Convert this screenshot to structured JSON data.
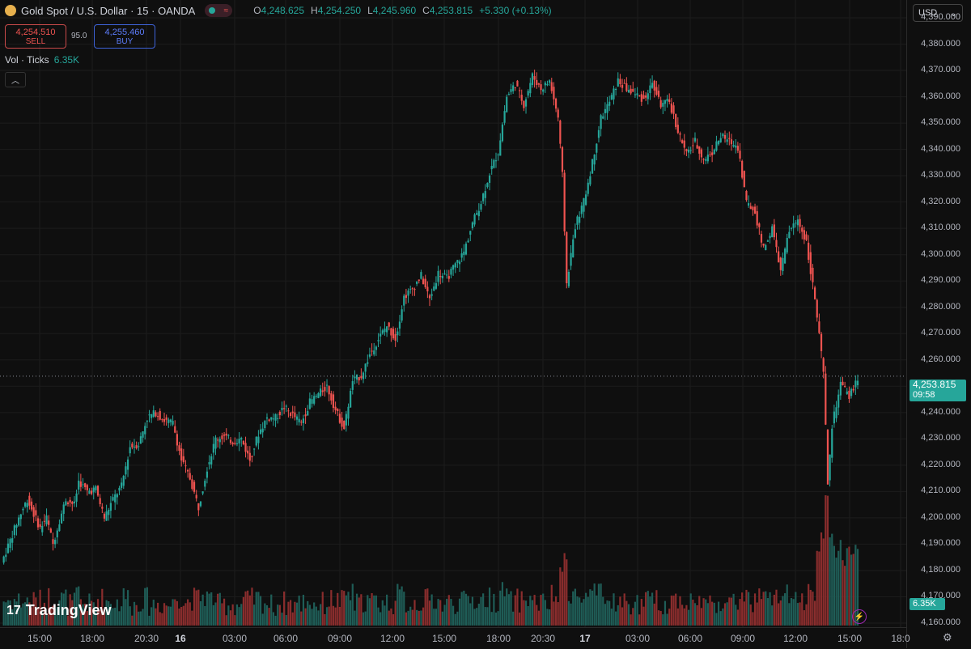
{
  "header": {
    "symbol_title": "Gold Spot / U.S. Dollar · 15 · OANDA",
    "pill_icon": "≈",
    "ohlc": {
      "o_label": "O",
      "o_value": "4,248.625",
      "h_label": "H",
      "h_value": "4,254.250",
      "l_label": "L",
      "l_value": "4,245.960",
      "c_label": "C",
      "c_value": "4,253.815",
      "change": "+5.330 (+0.13%)"
    }
  },
  "trade": {
    "sell_price": "4,254.510",
    "sell_label": "SELL",
    "spread": "95.0",
    "buy_price": "4,255.460",
    "buy_label": "BUY"
  },
  "volume_legend": {
    "label": "Vol · Ticks",
    "value": "6.35K"
  },
  "currency": {
    "value": "USD",
    "icon": "chevron-down-icon"
  },
  "last_price": {
    "value": "4,253.815",
    "countdown": "09:58"
  },
  "volume_last": "6.35K",
  "brand": "TradingView",
  "colors": {
    "up": "#26a69a",
    "down": "#ef5350",
    "vol_up": "#1f5d57",
    "vol_down": "#8a2d2d",
    "grid": "#1c1c1c"
  },
  "chart_data": {
    "type": "candlestick",
    "interval": "15",
    "y_ticks": [
      "4,390.000",
      "4,380.000",
      "4,370.000",
      "4,360.000",
      "4,350.000",
      "4,340.000",
      "4,330.000",
      "4,320.000",
      "4,310.000",
      "4,300.000",
      "4,290.000",
      "4,280.000",
      "4,270.000",
      "4,260.000",
      "4,250.000",
      "4,240.000",
      "4,230.000",
      "4,220.000",
      "4,210.000",
      "4,200.000",
      "4,190.000",
      "4,180.000",
      "4,170.000",
      "4,160.000"
    ],
    "ylim": [
      4160,
      4390
    ],
    "x_ticks": [
      "15:00",
      "18:00",
      "20:30",
      "16",
      "03:00",
      "06:00",
      "09:00",
      "12:00",
      "15:00",
      "18:00",
      "20:30",
      "17",
      "03:00",
      "06:00",
      "09:00",
      "12:00",
      "15:00",
      "18:0"
    ],
    "day_ticks": [
      "16",
      "17"
    ],
    "close_path": [
      [
        0,
        4183
      ],
      [
        8,
        4200
      ],
      [
        12,
        4207
      ],
      [
        18,
        4196
      ],
      [
        21,
        4200
      ],
      [
        24,
        4190
      ],
      [
        27,
        4199
      ],
      [
        30,
        4207
      ],
      [
        34,
        4205
      ],
      [
        36,
        4214
      ],
      [
        40,
        4210
      ],
      [
        44,
        4211
      ],
      [
        48,
        4200
      ],
      [
        52,
        4207
      ],
      [
        56,
        4212
      ],
      [
        60,
        4227
      ],
      [
        64,
        4228
      ],
      [
        68,
        4238
      ],
      [
        72,
        4240
      ],
      [
        76,
        4237
      ],
      [
        80,
        4236
      ],
      [
        84,
        4222
      ],
      [
        88,
        4215
      ],
      [
        92,
        4204
      ],
      [
        96,
        4219
      ],
      [
        100,
        4230
      ],
      [
        104,
        4231
      ],
      [
        108,
        4229
      ],
      [
        112,
        4230
      ],
      [
        116,
        4222
      ],
      [
        120,
        4232
      ],
      [
        124,
        4238
      ],
      [
        128,
        4238
      ],
      [
        132,
        4242
      ],
      [
        136,
        4239
      ],
      [
        140,
        4236
      ],
      [
        144,
        4244
      ],
      [
        148,
        4247
      ],
      [
        152,
        4250
      ],
      [
        156,
        4241
      ],
      [
        160,
        4234
      ],
      [
        164,
        4252
      ],
      [
        168,
        4254
      ],
      [
        172,
        4262
      ],
      [
        176,
        4268
      ],
      [
        180,
        4273
      ],
      [
        184,
        4268
      ],
      [
        188,
        4284
      ],
      [
        192,
        4287
      ],
      [
        196,
        4292
      ],
      [
        200,
        4283
      ],
      [
        204,
        4293
      ],
      [
        208,
        4291
      ],
      [
        212,
        4296
      ],
      [
        216,
        4301
      ],
      [
        220,
        4312
      ],
      [
        224,
        4320
      ],
      [
        228,
        4331
      ],
      [
        232,
        4339
      ],
      [
        236,
        4360
      ],
      [
        240,
        4365
      ],
      [
        244,
        4357
      ],
      [
        248,
        4368
      ],
      [
        252,
        4363
      ],
      [
        256,
        4366
      ],
      [
        260,
        4352
      ],
      [
        262,
        4330
      ],
      [
        264,
        4289
      ],
      [
        268,
        4311
      ],
      [
        272,
        4320
      ],
      [
        276,
        4335
      ],
      [
        280,
        4352
      ],
      [
        284,
        4358
      ],
      [
        288,
        4366
      ],
      [
        292,
        4363
      ],
      [
        296,
        4361
      ],
      [
        300,
        4359
      ],
      [
        304,
        4365
      ],
      [
        308,
        4357
      ],
      [
        312,
        4358
      ],
      [
        316,
        4347
      ],
      [
        320,
        4338
      ],
      [
        324,
        4343
      ],
      [
        328,
        4336
      ],
      [
        332,
        4339
      ],
      [
        336,
        4345
      ],
      [
        340,
        4343
      ],
      [
        344,
        4341
      ],
      [
        348,
        4320
      ],
      [
        352,
        4316
      ],
      [
        356,
        4302
      ],
      [
        360,
        4310
      ],
      [
        364,
        4294
      ],
      [
        368,
        4309
      ],
      [
        372,
        4313
      ],
      [
        376,
        4305
      ],
      [
        380,
        4283
      ],
      [
        384,
        4255
      ],
      [
        386,
        4213
      ],
      [
        388,
        4235
      ],
      [
        392,
        4251
      ],
      [
        396,
        4246
      ],
      [
        400,
        4253
      ]
    ],
    "last_close": 4253.815,
    "volume_legend": "Vol · Ticks",
    "volume_last": "6.35K"
  }
}
